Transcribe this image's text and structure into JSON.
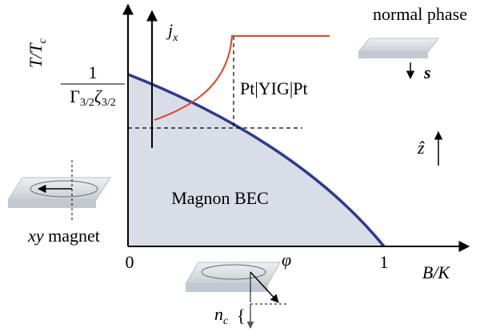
{
  "axes": {
    "y_label": {
      "main": "T/T",
      "sub": "c"
    },
    "x_label": "B/K",
    "origin": "0",
    "x_end": "1",
    "y_tick": {
      "numerator": "1",
      "denominator": [
        {
          "main": "Γ",
          "sub": "3/2"
        },
        {
          "main": "ζ",
          "sub": "3/2"
        }
      ]
    }
  },
  "current": {
    "main": "j",
    "sub": "x"
  },
  "junction": "Pt|YIG|Pt",
  "region": "Magnon BEC",
  "insets": {
    "normal": {
      "label": "normal phase",
      "spin": "s"
    },
    "axis": "ẑ",
    "xy": {
      "math": "xy",
      "text": " magnet"
    },
    "condensate": {
      "angle": "φ",
      "density": {
        "main": "n",
        "sub": "c"
      },
      "brace": "{"
    }
  }
}
